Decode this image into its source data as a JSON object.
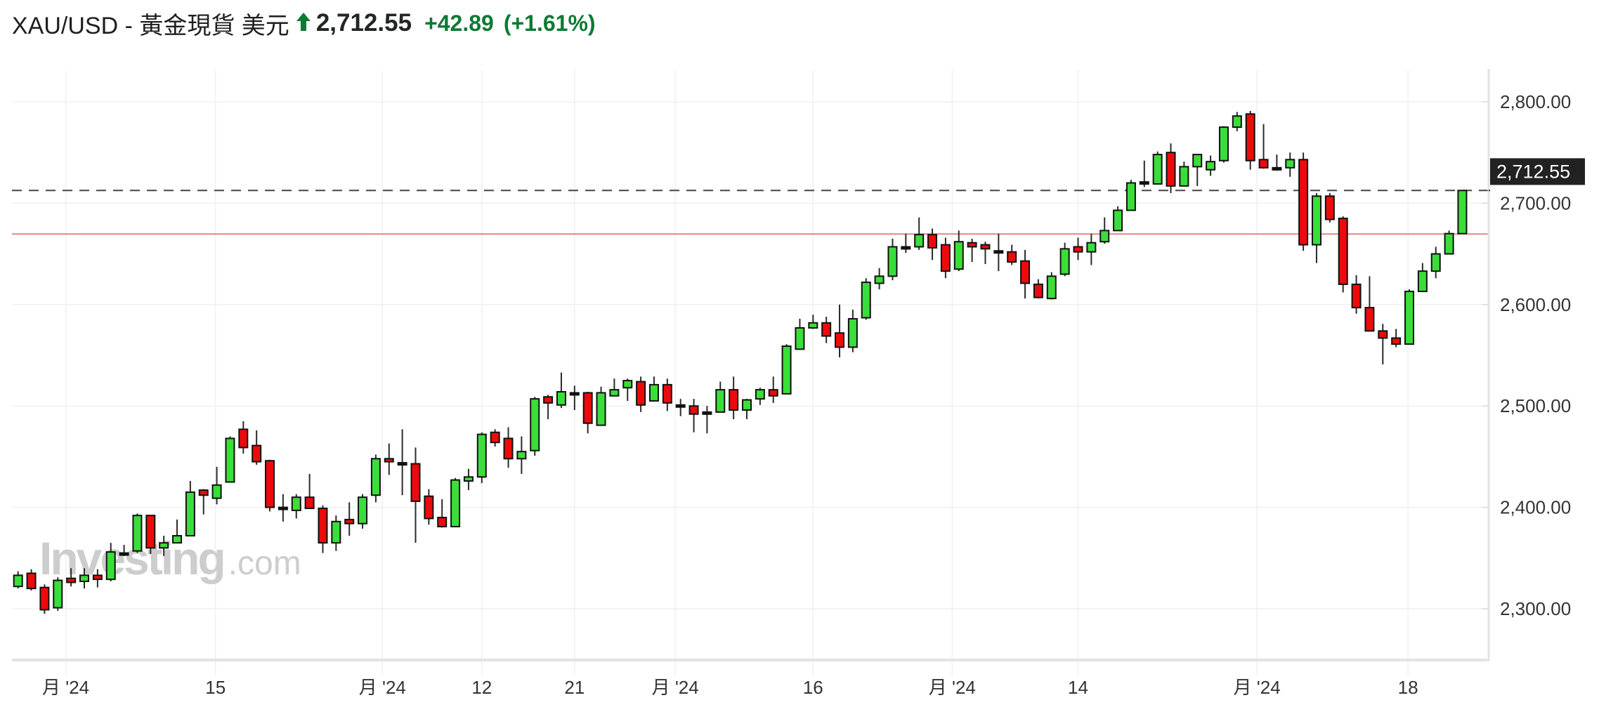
{
  "header": {
    "title": "XAU/USD - 黃金現貨 美元",
    "direction_icon": "arrow-up-icon",
    "price": "2,712.55",
    "change": "+42.89",
    "change_pct": "(+1.61%)",
    "change_color": "#0b7a34"
  },
  "watermark": {
    "brand": "Investing",
    "suffix": ".com"
  },
  "chart_data": {
    "type": "candlestick",
    "title": "",
    "xlabel": "",
    "ylabel": "",
    "ylim": [
      2250,
      2830
    ],
    "y_ticks": [
      2300,
      2400,
      2500,
      2600,
      2700,
      2800
    ],
    "y_tick_labels": [
      "2,300.00",
      "2,400.00",
      "2,500.00",
      "2,600.00",
      "2,700.00",
      "2,800.00"
    ],
    "x_ticks": [
      {
        "label": "月 '24",
        "at_candle": 4.6
      },
      {
        "label": "15",
        "at_candle": 15.9
      },
      {
        "label": "月 '24",
        "at_candle": 28.5
      },
      {
        "label": "12",
        "at_candle": 36
      },
      {
        "label": "21",
        "at_candle": 43
      },
      {
        "label": "月 '24",
        "at_candle": 50.6
      },
      {
        "label": "16",
        "at_candle": 61
      },
      {
        "label": "月 '24",
        "at_candle": 71.5
      },
      {
        "label": "14",
        "at_candle": 81
      },
      {
        "label": "月 '24",
        "at_candle": 94.5
      },
      {
        "label": "18",
        "at_candle": 105.9
      }
    ],
    "grid": true,
    "last_price": 2712.55,
    "last_price_label": "2,712.55",
    "previous_close": 2669.66,
    "colors": {
      "up": "#3ade3a",
      "down": "#ee0a0a",
      "doji": "#111111",
      "prev_close_line": "#e06666",
      "last_price_box": "#222222"
    },
    "ohlc_fields": [
      "open",
      "high",
      "low",
      "close"
    ],
    "candles": [
      [
        2322,
        2337,
        2320,
        2333
      ],
      [
        2335,
        2339,
        2318,
        2320
      ],
      [
        2321,
        2324,
        2295,
        2299
      ],
      [
        2301,
        2331,
        2298,
        2328
      ],
      [
        2330,
        2340,
        2322,
        2326
      ],
      [
        2327,
        2340,
        2320,
        2333
      ],
      [
        2333,
        2339,
        2321,
        2329
      ],
      [
        2329,
        2365,
        2327,
        2356
      ],
      [
        2355,
        2363,
        2352,
        2355
      ],
      [
        2357,
        2394,
        2355,
        2392
      ],
      [
        2392,
        2392,
        2354,
        2360
      ],
      [
        2360,
        2372,
        2352,
        2365
      ],
      [
        2365,
        2388,
        2365,
        2372
      ],
      [
        2372,
        2426,
        2372,
        2415
      ],
      [
        2417,
        2418,
        2393,
        2412
      ],
      [
        2409,
        2440,
        2403,
        2422
      ],
      [
        2425,
        2470,
        2425,
        2468
      ],
      [
        2477,
        2485,
        2453,
        2459
      ],
      [
        2461,
        2476,
        2442,
        2445
      ],
      [
        2446,
        2447,
        2396,
        2400
      ],
      [
        2400,
        2413,
        2386,
        2400
      ],
      [
        2397,
        2413,
        2389,
        2410
      ],
      [
        2410,
        2433,
        2399,
        2399
      ],
      [
        2399,
        2402,
        2355,
        2365
      ],
      [
        2365,
        2392,
        2357,
        2386
      ],
      [
        2388,
        2405,
        2372,
        2384
      ],
      [
        2384,
        2413,
        2379,
        2410
      ],
      [
        2412,
        2452,
        2405,
        2448
      ],
      [
        2448,
        2463,
        2432,
        2445
      ],
      [
        2444,
        2477,
        2412,
        2444
      ],
      [
        2443,
        2459,
        2365,
        2406
      ],
      [
        2411,
        2418,
        2383,
        2389
      ],
      [
        2390,
        2408,
        2380,
        2381
      ],
      [
        2381,
        2429,
        2381,
        2427
      ],
      [
        2426,
        2438,
        2417,
        2430
      ],
      [
        2430,
        2474,
        2424,
        2472
      ],
      [
        2474,
        2477,
        2460,
        2464
      ],
      [
        2468,
        2479,
        2439,
        2448
      ],
      [
        2448,
        2470,
        2433,
        2455
      ],
      [
        2456,
        2509,
        2451,
        2507
      ],
      [
        2509,
        2511,
        2487,
        2503
      ],
      [
        2501,
        2533,
        2498,
        2514
      ],
      [
        2513,
        2520,
        2496,
        2513
      ],
      [
        2513,
        2514,
        2473,
        2483
      ],
      [
        2481,
        2519,
        2481,
        2513
      ],
      [
        2510,
        2527,
        2510,
        2516
      ],
      [
        2518,
        2527,
        2505,
        2525
      ],
      [
        2524,
        2529,
        2494,
        2501
      ],
      [
        2505,
        2529,
        2505,
        2521
      ],
      [
        2521,
        2527,
        2495,
        2503
      ],
      [
        2501,
        2507,
        2490,
        2501
      ],
      [
        2500,
        2507,
        2474,
        2492
      ],
      [
        2494,
        2500,
        2473,
        2494
      ],
      [
        2494,
        2524,
        2494,
        2516
      ],
      [
        2516,
        2529,
        2487,
        2496
      ],
      [
        2496,
        2507,
        2487,
        2506
      ],
      [
        2507,
        2518,
        2501,
        2516
      ],
      [
        2516,
        2529,
        2503,
        2510
      ],
      [
        2512,
        2561,
        2512,
        2559
      ],
      [
        2556,
        2586,
        2556,
        2577
      ],
      [
        2577,
        2590,
        2576,
        2582
      ],
      [
        2582,
        2588,
        2562,
        2569
      ],
      [
        2572,
        2600,
        2548,
        2558
      ],
      [
        2558,
        2595,
        2553,
        2586
      ],
      [
        2587,
        2626,
        2585,
        2622
      ],
      [
        2621,
        2636,
        2615,
        2628
      ],
      [
        2628,
        2665,
        2624,
        2657
      ],
      [
        2657,
        2670,
        2651,
        2657
      ],
      [
        2657,
        2686,
        2654,
        2669
      ],
      [
        2669,
        2675,
        2644,
        2656
      ],
      [
        2659,
        2666,
        2626,
        2633
      ],
      [
        2635,
        2673,
        2633,
        2662
      ],
      [
        2661,
        2665,
        2642,
        2657
      ],
      [
        2659,
        2662,
        2640,
        2655
      ],
      [
        2653,
        2670,
        2633,
        2653
      ],
      [
        2652,
        2659,
        2639,
        2642
      ],
      [
        2643,
        2654,
        2606,
        2621
      ],
      [
        2620,
        2625,
        2606,
        2607
      ],
      [
        2606,
        2632,
        2605,
        2628
      ],
      [
        2630,
        2661,
        2628,
        2655
      ],
      [
        2657,
        2666,
        2644,
        2652
      ],
      [
        2652,
        2670,
        2639,
        2661
      ],
      [
        2662,
        2686,
        2660,
        2673
      ],
      [
        2673,
        2697,
        2673,
        2693
      ],
      [
        2693,
        2723,
        2693,
        2720
      ],
      [
        2721,
        2742,
        2716,
        2721
      ],
      [
        2719,
        2751,
        2719,
        2748
      ],
      [
        2750,
        2759,
        2710,
        2717
      ],
      [
        2717,
        2741,
        2717,
        2736
      ],
      [
        2736,
        2748,
        2717,
        2748
      ],
      [
        2733,
        2747,
        2727,
        2741
      ],
      [
        2742,
        2776,
        2740,
        2775
      ],
      [
        2775,
        2790,
        2771,
        2786
      ],
      [
        2788,
        2791,
        2733,
        2742
      ],
      [
        2743,
        2778,
        2734,
        2735
      ],
      [
        2735,
        2748,
        2732,
        2735
      ],
      [
        2735,
        2750,
        2726,
        2743
      ],
      [
        2743,
        2750,
        2653,
        2659
      ],
      [
        2659,
        2710,
        2641,
        2707
      ],
      [
        2707,
        2710,
        2681,
        2684
      ],
      [
        2685,
        2687,
        2612,
        2620
      ],
      [
        2620,
        2629,
        2591,
        2597
      ],
      [
        2597,
        2628,
        2574,
        2574
      ],
      [
        2574,
        2581,
        2541,
        2567
      ],
      [
        2567,
        2576,
        2558,
        2561
      ],
      [
        2561,
        2615,
        2561,
        2613
      ],
      [
        2613,
        2641,
        2613,
        2633
      ],
      [
        2633,
        2657,
        2626,
        2650
      ],
      [
        2650,
        2673,
        2650,
        2670
      ],
      [
        2670,
        2713,
        2670,
        2712.55
      ]
    ]
  }
}
